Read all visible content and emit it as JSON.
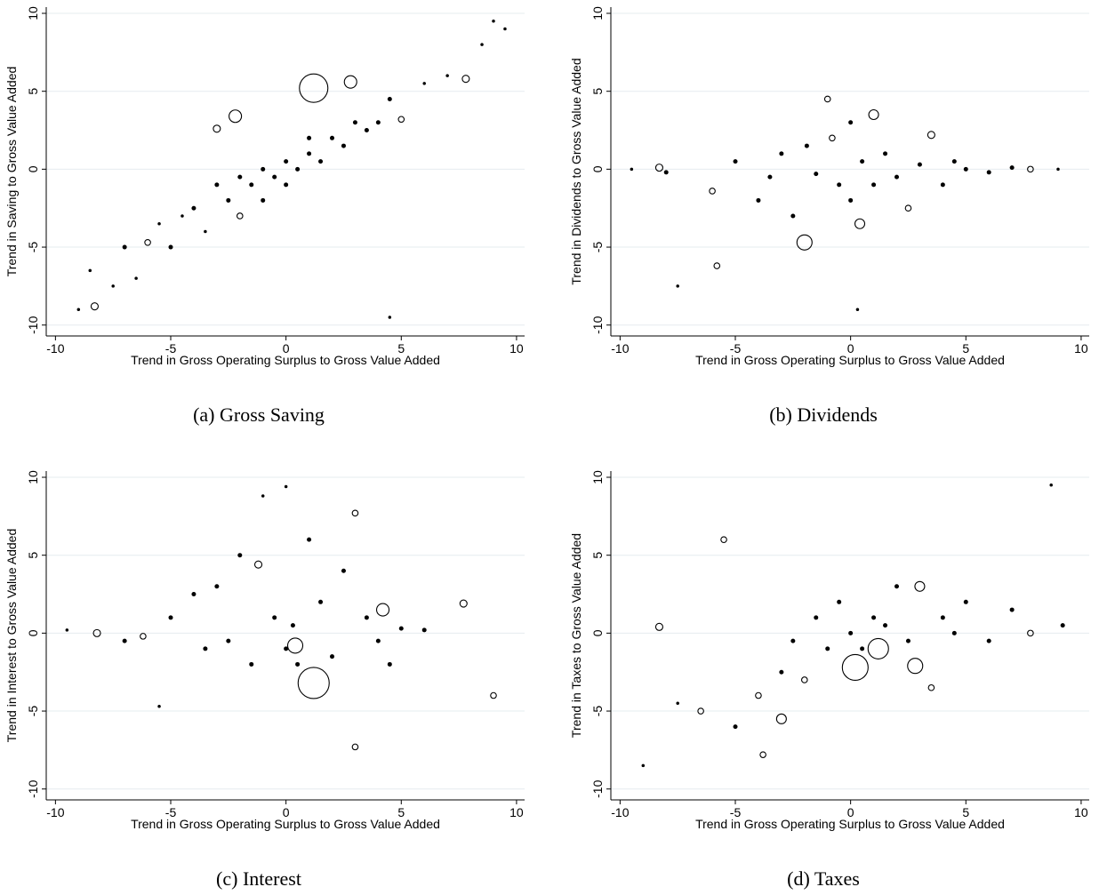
{
  "chart_data": [
    {
      "type": "scatter",
      "caption": "(a) Gross Saving",
      "x_label": "Trend in Gross Operating Surplus to Gross Value Added",
      "y_label": "Trend in Saving to Gross Value Added",
      "x": [
        -9,
        -8.5,
        -8.3,
        -7.5,
        -7,
        -6.5,
        -6,
        -5.5,
        -5,
        -4.5,
        -4,
        -3.5,
        -3,
        -2.5,
        -2,
        -2,
        -1.5,
        -1,
        -1,
        -0.5,
        0,
        0,
        0.5,
        1,
        1,
        1.5,
        2,
        2.5,
        3,
        3.5,
        4,
        4.5,
        5,
        6,
        7,
        7.8,
        8.5,
        9,
        9.5,
        1.2,
        2.8,
        -3,
        4.5,
        -2.2
      ],
      "y": [
        -9,
        -6.5,
        -8.8,
        -7.5,
        -5,
        -7,
        -4.7,
        -3.5,
        -5,
        -3,
        -2.5,
        -4,
        -1,
        -2,
        -0.5,
        -3,
        -1,
        0,
        -2,
        -0.5,
        0.5,
        -1,
        0,
        1,
        2,
        0.5,
        2,
        1.5,
        3,
        2.5,
        3,
        4.5,
        3.2,
        5.5,
        6,
        5.8,
        8,
        9.5,
        9,
        5.2,
        5.6,
        2.6,
        -9.5,
        3.4
      ],
      "sizes": [
        1,
        1,
        4,
        1,
        2,
        1,
        3,
        1,
        2,
        1,
        2,
        1,
        2,
        2,
        2,
        3,
        2,
        2,
        2,
        2,
        2,
        2,
        2,
        2,
        2,
        2,
        2,
        2,
        2,
        2,
        2,
        2,
        3,
        1,
        1,
        4,
        1,
        1,
        1,
        20,
        8,
        4,
        1,
        8
      ],
      "xlim": [
        -10.4,
        10.35
      ],
      "ylim": [
        -10.7,
        10.4
      ],
      "xticks": [
        -10,
        -5,
        0,
        5,
        10
      ],
      "yticks": [
        -10,
        -5,
        0,
        5,
        10
      ],
      "grid": true
    },
    {
      "type": "scatter",
      "caption": "(b) Dividends",
      "x_label": "Trend in Gross Operating Surplus to Gross Value Added",
      "y_label": "Trend in Dividends to Gross Value Added",
      "x": [
        -9.5,
        -8.3,
        -8,
        -7.5,
        -6,
        -5.8,
        -5,
        -4,
        -3.5,
        -3,
        -2.5,
        -2,
        -1.9,
        -1.5,
        -1,
        -0.5,
        0,
        0,
        0.3,
        0.5,
        1,
        1,
        1.5,
        2,
        2.5,
        3,
        3.5,
        4,
        4.5,
        5,
        6,
        7,
        7.8,
        9,
        0.4,
        -0.8
      ],
      "y": [
        0,
        0.1,
        -0.2,
        -7.5,
        -1.4,
        -6.2,
        0.5,
        -2,
        -0.5,
        1,
        -3,
        -4.7,
        1.5,
        -0.3,
        4.5,
        -1,
        3,
        -2,
        -9,
        0.5,
        3.5,
        -1,
        1,
        -0.5,
        -2.5,
        0.3,
        2.2,
        -1,
        0.5,
        0,
        -0.2,
        0.1,
        0,
        0,
        -3.5,
        2
      ],
      "sizes": [
        1,
        4,
        2,
        1,
        3,
        3,
        2,
        2,
        2,
        2,
        2,
        10,
        2,
        2,
        3,
        2,
        2,
        2,
        1,
        2,
        6,
        2,
        2,
        2,
        3,
        2,
        4,
        2,
        2,
        2,
        2,
        2,
        3,
        1,
        6,
        3
      ],
      "xlim": [
        -10.4,
        10.35
      ],
      "ylim": [
        -10.7,
        10.4
      ],
      "xticks": [
        -10,
        -5,
        0,
        5,
        10
      ],
      "yticks": [
        -10,
        -5,
        0,
        5,
        10
      ],
      "grid": true
    },
    {
      "type": "scatter",
      "caption": "(c) Interest",
      "x_label": "Trend in Gross Operating Surplus to Gross Value Added",
      "y_label": "Trend in Interest to Gross Value Added",
      "x": [
        -9.5,
        -8.2,
        -7,
        -6.2,
        -5.5,
        -5,
        -4,
        -3.5,
        -3,
        -2.5,
        -2,
        -1.5,
        -1,
        -0.5,
        0,
        0,
        0.3,
        0.5,
        1,
        1.2,
        1.5,
        2,
        2.5,
        3,
        3,
        3.5,
        4,
        4.2,
        4.5,
        5,
        6,
        7.7,
        9,
        -1.2,
        0.4
      ],
      "y": [
        0.2,
        0,
        -0.5,
        -0.2,
        -4.7,
        1,
        2.5,
        -1,
        3,
        -0.5,
        5,
        -2,
        8.8,
        1,
        9.4,
        -1,
        0.5,
        -2,
        6,
        -3.2,
        2,
        -1.5,
        4,
        7.7,
        -7.3,
        1,
        -0.5,
        1.5,
        -2,
        0.3,
        0.2,
        1.9,
        -4,
        4.4,
        -0.8
      ],
      "sizes": [
        1,
        4,
        2,
        3,
        1,
        2,
        2,
        2,
        2,
        2,
        2,
        2,
        1,
        2,
        1,
        2,
        2,
        2,
        2,
        22,
        2,
        2,
        2,
        3,
        3,
        2,
        2,
        8,
        2,
        2,
        2,
        4,
        3,
        4,
        10
      ],
      "xlim": [
        -10.4,
        10.35
      ],
      "ylim": [
        -10.7,
        10.4
      ],
      "xticks": [
        -10,
        -5,
        0,
        5,
        10
      ],
      "yticks": [
        -10,
        -5,
        0,
        5,
        10
      ],
      "grid": true
    },
    {
      "type": "scatter",
      "caption": "(d) Taxes",
      "x_label": "Trend in Gross Operating Surplus to Gross Value Added",
      "y_label": "Trend in Taxes to Gross Value Added",
      "x": [
        -9,
        -8.3,
        -7.5,
        -6.5,
        -5.5,
        -5,
        -4,
        -3,
        -3,
        -2.5,
        -2,
        -1.5,
        -1,
        -0.5,
        0,
        0.2,
        0.5,
        1,
        1.2,
        1.5,
        2,
        2.5,
        2.8,
        3,
        3.5,
        4,
        4.5,
        5,
        6,
        7,
        7.8,
        8.7,
        9.2,
        -3.8
      ],
      "y": [
        -8.5,
        0.4,
        -4.5,
        -5,
        6,
        -6,
        -4,
        -5.5,
        -2.5,
        -0.5,
        -3,
        1,
        -1,
        2,
        0,
        -2.2,
        -1,
        1,
        -1,
        0.5,
        3,
        -0.5,
        -2.1,
        3,
        -3.5,
        1,
        0,
        2,
        -0.5,
        1.5,
        0,
        9.5,
        0.5,
        -7.8
      ],
      "sizes": [
        1,
        4,
        1,
        3,
        3,
        2,
        3,
        6,
        2,
        2,
        3,
        2,
        2,
        2,
        2,
        18,
        2,
        2,
        14,
        2,
        2,
        2,
        10,
        6,
        3,
        2,
        2,
        2,
        2,
        2,
        3,
        1,
        2,
        3
      ],
      "xlim": [
        -10.4,
        10.35
      ],
      "ylim": [
        -10.7,
        10.4
      ],
      "xticks": [
        -10,
        -5,
        0,
        5,
        10
      ],
      "yticks": [
        -10,
        -5,
        0,
        5,
        10
      ],
      "grid": true
    }
  ]
}
